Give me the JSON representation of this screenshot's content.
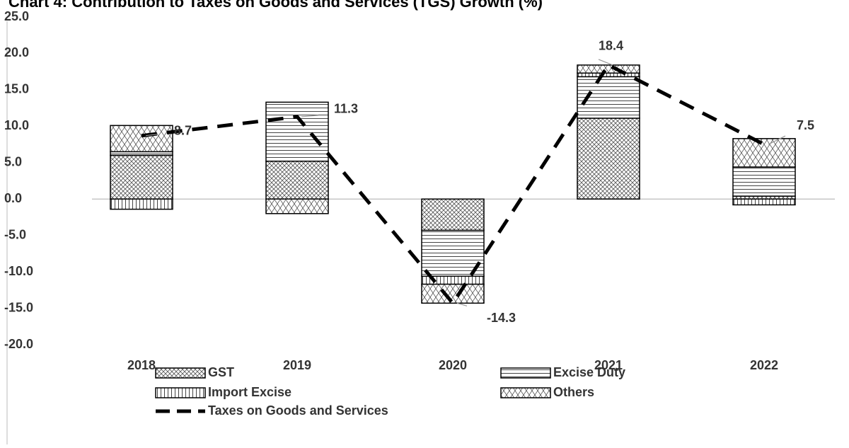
{
  "chart_data": {
    "type": "bar",
    "title": "Chart 4: Contribution to Taxes on Goods and Services (TGS) Growth (%)",
    "categories": [
      "2018",
      "2019",
      "2020",
      "2021",
      "2022"
    ],
    "series": [
      {
        "name": "GST",
        "values": [
          6.0,
          5.2,
          -4.3,
          11.1,
          0.4
        ]
      },
      {
        "name": "Excise Duty",
        "values": [
          0.5,
          8.1,
          -6.3,
          5.7,
          4.0
        ]
      },
      {
        "name": "Import Excise",
        "values": [
          -1.4,
          0.0,
          -1.1,
          0.5,
          -0.8
        ]
      },
      {
        "name": "Others",
        "values": [
          3.6,
          -2.0,
          -2.6,
          1.1,
          3.9
        ]
      },
      {
        "name": "Taxes on Goods and Services",
        "type": "line",
        "color": "#000000",
        "values": [
          8.7,
          11.3,
          -14.3,
          18.4,
          7.5
        ]
      }
    ],
    "ylim": [
      -20,
      25
    ],
    "yticks": [
      {
        "value": -20,
        "label": "-20.0"
      },
      {
        "value": -15,
        "label": "-15.0"
      },
      {
        "value": -10,
        "label": "-10.0"
      },
      {
        "value": -5,
        "label": "-5.0"
      },
      {
        "value": 0,
        "label": "0.0"
      },
      {
        "value": 5,
        "label": "5.0"
      },
      {
        "value": 10,
        "label": "10.0"
      },
      {
        "value": 15,
        "label": "15.0"
      },
      {
        "value": 20,
        "label": "20.0"
      },
      {
        "value": 25,
        "label": "25.0"
      }
    ]
  }
}
